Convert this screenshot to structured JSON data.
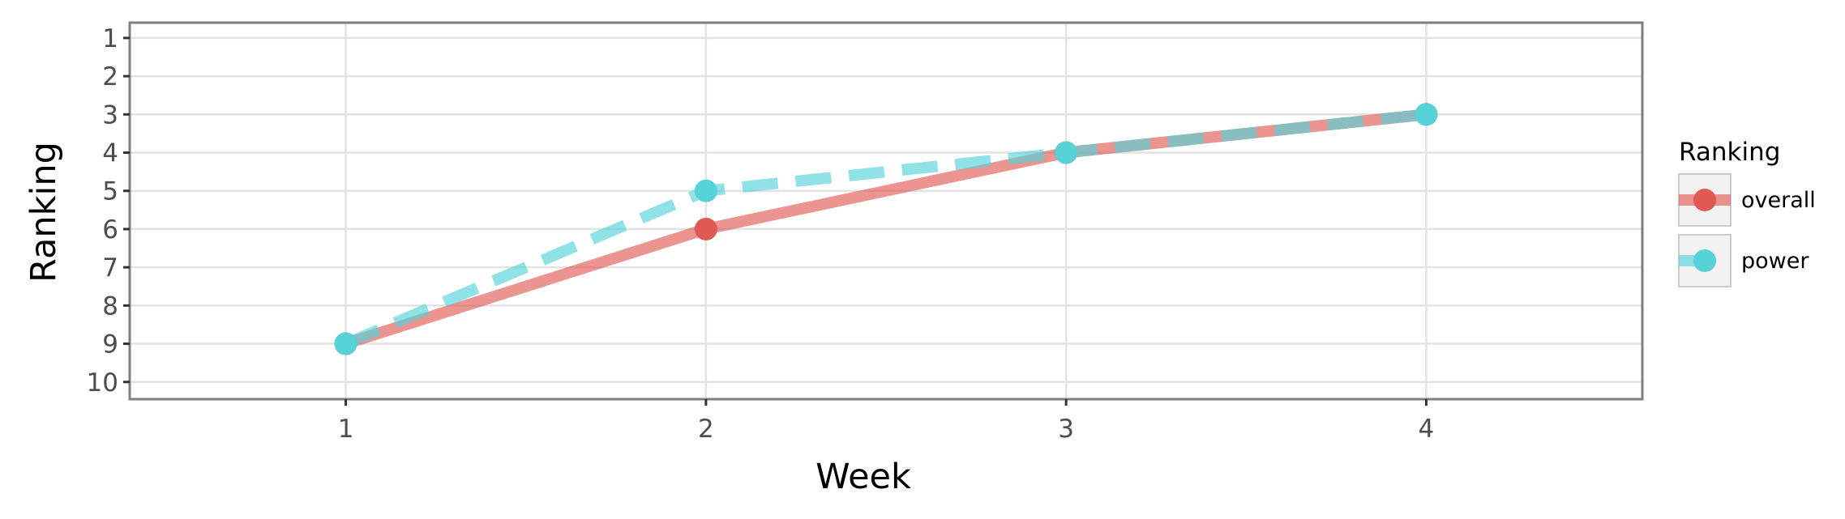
{
  "chart_data": {
    "type": "line",
    "xlabel": "Week",
    "ylabel": "Ranking",
    "x": [
      1,
      2,
      3,
      4
    ],
    "xlim": [
      0.4,
      4.6
    ],
    "ylim": [
      10.45,
      0.6
    ],
    "y_reversed": true,
    "xticks": [
      1,
      2,
      3,
      4
    ],
    "yticks": [
      1,
      2,
      3,
      4,
      5,
      6,
      7,
      8,
      9,
      10
    ],
    "grid": true,
    "legend": {
      "title": "Ranking",
      "position": "right"
    },
    "series": [
      {
        "name": "overall",
        "values": [
          9,
          6,
          4,
          3
        ],
        "color": "#e05a55",
        "line_style": "solid"
      },
      {
        "name": "power",
        "values": [
          9,
          5,
          4,
          3
        ],
        "color": "#56d2d9",
        "line_style": "dashed"
      }
    ]
  }
}
